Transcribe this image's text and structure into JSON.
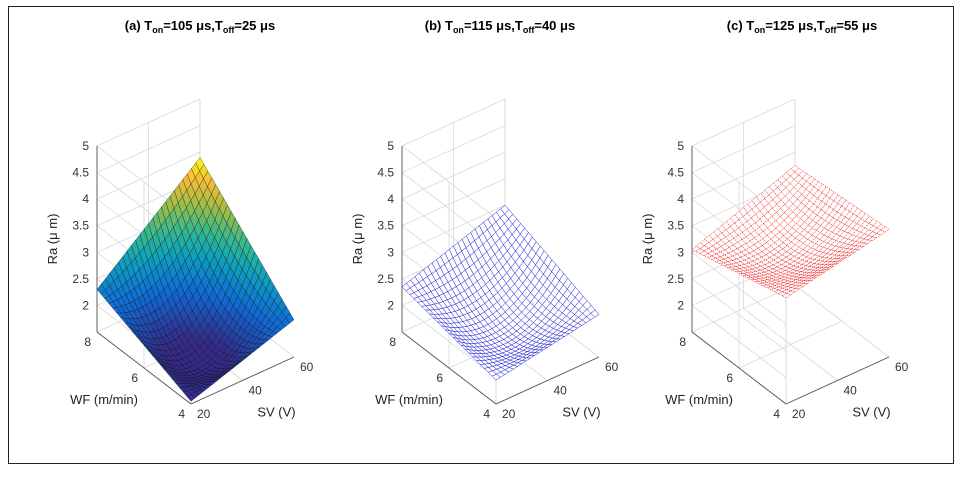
{
  "chart_data": [
    {
      "type": "surface",
      "panel": "a",
      "title": {
        "prefix": "(a) T",
        "sub1": "on",
        "mid": "=105 μs,T",
        "sub2": "off",
        "end": "=25 μs"
      },
      "xlabel": "SV (V)",
      "ylabel": "WF (m/min)",
      "zlabel": "Ra (μ m)",
      "x": [
        20,
        60
      ],
      "y": [
        4,
        8
      ],
      "zlim": [
        1.5,
        5
      ],
      "xticks": [
        "20",
        "40",
        "60"
      ],
      "yticks": [
        "4",
        "6",
        "8"
      ],
      "zticks": [
        "2",
        "2.5",
        "3",
        "3.5",
        "4",
        "4.5",
        "5"
      ],
      "corners": {
        "x20_y4": 1.55,
        "x60_y4": 2.2,
        "x20_y8": 2.3,
        "x60_y8": 3.9,
        "min_center": 1.55
      },
      "style": "filled",
      "colormap": "parula",
      "edge_color": "#000000"
    },
    {
      "type": "surface",
      "panel": "b",
      "title": {
        "prefix": "(b) T",
        "sub1": "on",
        "mid": "=115 μs,T",
        "sub2": "off",
        "end": "=40 μs"
      },
      "xlabel": "SV (V)",
      "ylabel": "WF (m/min)",
      "zlabel": "Ra (μ m)",
      "x": [
        20,
        60
      ],
      "y": [
        4,
        8
      ],
      "zlim": [
        1.5,
        5
      ],
      "xticks": [
        "20",
        "40",
        "60"
      ],
      "yticks": [
        "4",
        "6",
        "8"
      ],
      "zticks": [
        "2",
        "2.5",
        "3",
        "3.5",
        "4",
        "4.5",
        "5"
      ],
      "corners": {
        "x20_y4": 1.95,
        "x60_y4": 2.3,
        "x20_y8": 2.35,
        "x60_y8": 3.0,
        "min_center": 1.9
      },
      "style": "mesh",
      "edge_color": "#1f1fd6"
    },
    {
      "type": "surface",
      "panel": "c",
      "title": {
        "prefix": "(c) T",
        "sub1": "on",
        "mid": "=125 μs,T",
        "sub2": "off",
        "end": "=55 μs"
      },
      "xlabel": "SV (V)",
      "ylabel": "WF (m/min)",
      "zlabel": "Ra (μ m)",
      "x": [
        20,
        60
      ],
      "y": [
        4,
        8
      ],
      "zlim": [
        1.5,
        5
      ],
      "xticks": [
        "20",
        "40",
        "60"
      ],
      "yticks": [
        "4",
        "6",
        "8"
      ],
      "zticks": [
        "2",
        "2.5",
        "3",
        "3.5",
        "4",
        "4.5",
        "5"
      ],
      "corners": {
        "x20_y4": 3.5,
        "x60_y4": 3.9,
        "x20_y8": 3.05,
        "x60_y8": 3.75,
        "min_center": 3.2
      },
      "style": "mesh",
      "edge_color": "#ee0000"
    }
  ]
}
